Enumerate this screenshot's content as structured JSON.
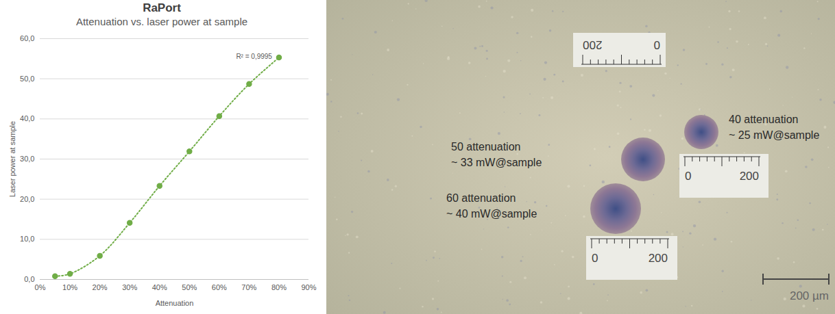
{
  "chart_data": {
    "type": "line",
    "title": "RaPort",
    "subtitle": "Attenuation vs. laser power at sample",
    "x_label": "Attenuation",
    "y_label": "Laser power at sample",
    "x": [
      5,
      10,
      20,
      30,
      40,
      50,
      60,
      70,
      80
    ],
    "values": [
      0.8,
      1.4,
      5.9,
      14.1,
      23.3,
      31.9,
      40.7,
      48.7,
      55.3
    ],
    "color": "#70ad47",
    "marker": "circle",
    "line_style": "dotted",
    "annotation": "R² = 0,9995",
    "xlim": [
      0,
      90
    ],
    "xticks": [
      {
        "value": 0,
        "label": "0%"
      },
      {
        "value": 10,
        "label": "10%"
      },
      {
        "value": 20,
        "label": "20%"
      },
      {
        "value": 30,
        "label": "30%"
      },
      {
        "value": 40,
        "label": "40%"
      },
      {
        "value": 50,
        "label": "50%"
      },
      {
        "value": 60,
        "label": "60%"
      },
      {
        "value": 70,
        "label": "70%"
      },
      {
        "value": 80,
        "label": "80%"
      },
      {
        "value": 90,
        "label": "90%"
      }
    ],
    "ylim": [
      0,
      60
    ],
    "yticks": [
      {
        "value": 0,
        "label": "0,0"
      },
      {
        "value": 10,
        "label": "10,0"
      },
      {
        "value": 20,
        "label": "20,0"
      },
      {
        "value": 30,
        "label": "30,0"
      },
      {
        "value": 40,
        "label": "40,0"
      },
      {
        "value": 50,
        "label": "50,0"
      },
      {
        "value": 60,
        "label": "60,0"
      }
    ],
    "grid": true
  },
  "image_panel": {
    "annotations": [
      {
        "lines": [
          "50 attenuation",
          "~ 33 mW@sample"
        ]
      },
      {
        "lines": [
          "60 attenuation",
          "~ 40 mW@sample"
        ]
      },
      {
        "lines": [
          "40 attenuation",
          "~ 25 mW@sample"
        ]
      }
    ],
    "rulers": [
      {
        "labels": [
          "0",
          "200"
        ]
      },
      {
        "labels": [
          "0",
          "200"
        ]
      },
      {
        "labels": [
          "0",
          "200"
        ]
      }
    ],
    "scale_bar": "200 µm"
  }
}
